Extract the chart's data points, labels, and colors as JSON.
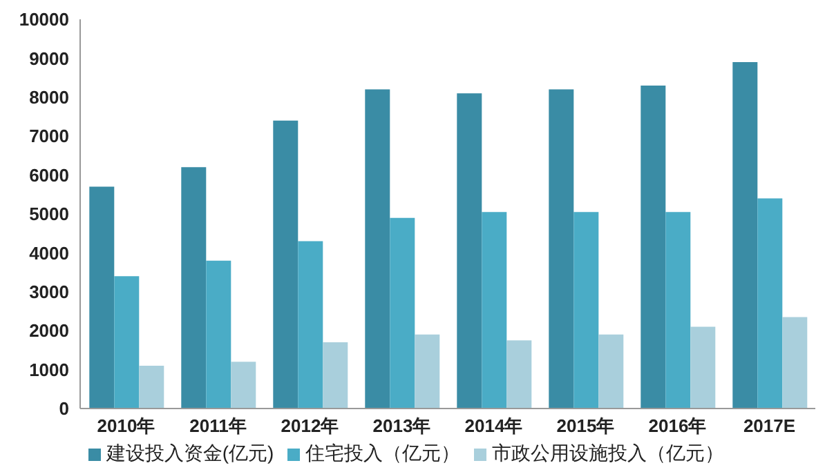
{
  "chart_data": {
    "type": "bar",
    "categories": [
      "2010年",
      "2011年",
      "2012年",
      "2013年",
      "2014年",
      "2015年",
      "2016年",
      "2017E"
    ],
    "series": [
      {
        "name": "建设投入资金(亿元)",
        "color": "#3a8ca5",
        "values": [
          5700,
          6200,
          7400,
          8200,
          8100,
          8200,
          8300,
          8900
        ]
      },
      {
        "name": "住宅投入（亿元）",
        "color": "#4aacc6",
        "values": [
          3400,
          3800,
          4300,
          4900,
          5050,
          5050,
          5050,
          5400
        ]
      },
      {
        "name": "市政公用设施投入（亿元）",
        "color": "#a9cfdc",
        "values": [
          1100,
          1200,
          1700,
          1900,
          1750,
          1900,
          2100,
          2350
        ]
      }
    ],
    "ylim": [
      0,
      10000
    ],
    "yticks": [
      0,
      1000,
      2000,
      3000,
      4000,
      5000,
      6000,
      7000,
      8000,
      9000,
      10000
    ],
    "grid": false,
    "legend": "bottom"
  }
}
